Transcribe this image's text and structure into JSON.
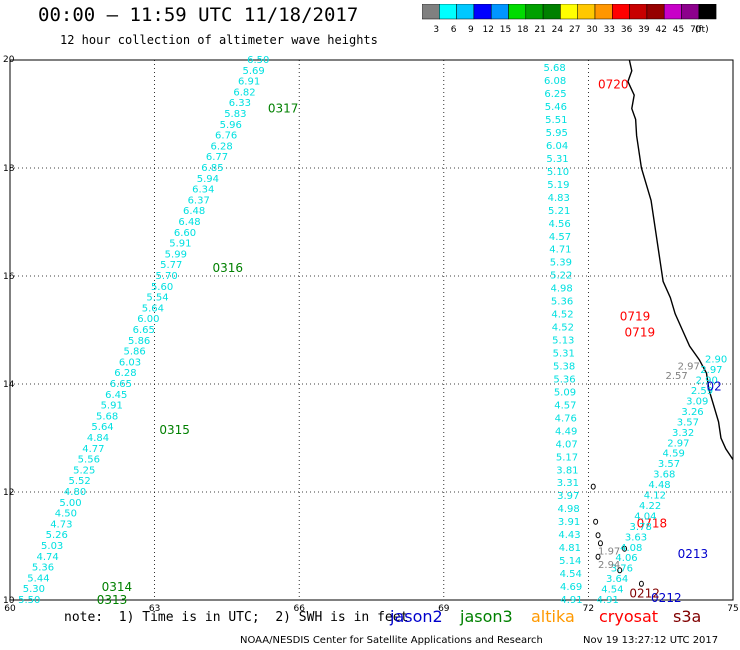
{
  "title": "00:00 – 11:59 UTC 11/18/2017",
  "subtitle": "12 hour collection of altimeter wave heights",
  "legend": {
    "colors": [
      "#808080",
      "#00ffff",
      "#00c8ff",
      "#0000ff",
      "#0096ff",
      "#00dc00",
      "#00a000",
      "#008000",
      "#ffff00",
      "#ffc800",
      "#ff9600",
      "#ff0000",
      "#c80000",
      "#960000",
      "#c800c8",
      "#8c008c",
      "#000000"
    ],
    "labels": [
      "3",
      "6",
      "9",
      "12",
      "15",
      "18",
      "21",
      "24",
      "27",
      "30",
      "33",
      "36",
      "39",
      "42",
      "45",
      "70",
      "(ft)"
    ]
  },
  "map": {
    "lon_ticks": [
      "60",
      "63",
      "66",
      "69",
      "72",
      "75"
    ],
    "lat_ticks": [
      "20",
      "18",
      "16",
      "14",
      "12",
      "10"
    ],
    "lon_range": [
      60,
      75
    ],
    "lat_range": [
      10,
      20
    ],
    "colors": {
      "jason2": "#0000cc",
      "jason3": "#008000",
      "altika": "#ff9900",
      "cryosat": "#ff0000",
      "s3a": "#800000",
      "swh_light": "#00e0e0",
      "swh_gray": "#808080"
    },
    "tracks": [
      {
        "satellite": "jason3",
        "lon_start": 60.4,
        "lat_start": 10.0,
        "lon_end": 65.15,
        "lat_end": 20.0,
        "values": [
          "5.50",
          "5.30",
          "5.44",
          "5.36",
          "4.74",
          "5.03",
          "5.26",
          "4.73",
          "4.50",
          "5.00",
          "4.80",
          "5.52",
          "5.25",
          "5.56",
          "4.77",
          "4.84",
          "5.64",
          "5.68",
          "5.91",
          "6.45",
          "6.65",
          "6.28",
          "6.03",
          "5.86",
          "5.86",
          "6.65",
          "6.00",
          "5.64",
          "5.54",
          "5.60",
          "5.70",
          "5.77",
          "5.99",
          "5.91",
          "6.60",
          "6.48",
          "6.48",
          "6.37",
          "6.34",
          "5.94",
          "6.85",
          "6.77",
          "6.28",
          "6.76",
          "5.96",
          "5.83",
          "6.33",
          "6.82",
          "6.91",
          "5.69",
          "6.50"
        ],
        "time_labels": [
          {
            "text": "0313",
            "lon": 61.8,
            "lat": 10.0
          },
          {
            "text": "0314",
            "lon": 61.9,
            "lat": 10.24
          },
          {
            "text": "0315",
            "lon": 63.1,
            "lat": 13.15
          },
          {
            "text": "0316",
            "lon": 64.2,
            "lat": 16.15
          },
          {
            "text": "0317",
            "lon": 65.35,
            "lat": 19.1
          }
        ]
      },
      {
        "satellite": "cryosat",
        "lon_start": 71.65,
        "lat_start": 10.0,
        "lon_end": 71.3,
        "lat_end": 19.85,
        "values": [
          "4.91",
          "4.69",
          "4.54",
          "5.14",
          "4.81",
          "4.43",
          "3.91",
          "4.98",
          "3.97",
          "3.31",
          "3.81",
          "5.17",
          "4.07",
          "4.49",
          "4.76",
          "4.57",
          "5.09",
          "5.36",
          "5.38",
          "5.31",
          "5.13",
          "4.52",
          "4.52",
          "5.36",
          "4.98",
          "5.22",
          "5.39",
          "4.71",
          "4.57",
          "4.56",
          "5.21",
          "4.83",
          "5.19",
          "5.10",
          "5.31",
          "6.04",
          "5.95",
          "5.51",
          "5.46",
          "6.25",
          "6.08",
          "5.68"
        ],
        "time_labels": [
          {
            "text": "0718",
            "lon": 73.0,
            "lat": 11.42
          },
          {
            "text": "0719",
            "lon": 72.75,
            "lat": 14.95
          },
          {
            "text": "0719",
            "lon": 72.65,
            "lat": 15.25
          },
          {
            "text": "0720",
            "lon": 72.2,
            "lat": 19.55
          }
        ]
      },
      {
        "satellite": "jason2",
        "lon_start": 72.4,
        "lat_start": 10.0,
        "lon_end": 74.65,
        "lat_end": 14.45,
        "values": [
          "4.91",
          "4.54",
          "3.64",
          "3.76",
          "4.06",
          "4.08",
          "3.63",
          "3.78",
          "4.04",
          "4.22",
          "4.12",
          "4.48",
          "3.68",
          "3.57",
          "4.59",
          "2.97",
          "3.32",
          "3.57",
          "3.26",
          "3.09",
          "2.59",
          "2.90",
          "2.97",
          "2.90"
        ],
        "time_labels": [
          {
            "text": "0212",
            "lon": 73.3,
            "lat": 10.04
          },
          {
            "text": "0213",
            "lon": 73.85,
            "lat": 10.85
          },
          {
            "text": "02",
            "lon": 74.45,
            "lat": 13.95
          }
        ]
      },
      {
        "satellite": "s3a",
        "time_labels": [
          {
            "text": "0212",
            "lon": 72.85,
            "lat": 10.12
          }
        ]
      }
    ],
    "extra_values": [
      {
        "text": "1.97",
        "lon": 72.2,
        "lat": 10.9,
        "tone": "gray"
      },
      {
        "text": "2.94",
        "lon": 72.2,
        "lat": 10.65,
        "tone": "gray"
      },
      {
        "text": "2.97",
        "lon": 73.85,
        "lat": 14.32,
        "tone": "gray"
      },
      {
        "text": "2.57",
        "lon": 73.6,
        "lat": 14.15,
        "tone": "gray"
      }
    ]
  },
  "footer": {
    "note": "note:  1) Time is in UTC;  2) SWH is in feet",
    "satellites": [
      {
        "name": "jason2",
        "color": "#0000cc"
      },
      {
        "name": "jason3",
        "color": "#008000"
      },
      {
        "name": "altika",
        "color": "#ff9900"
      },
      {
        "name": "cryosat",
        "color": "#ff0000"
      },
      {
        "name": "s3a",
        "color": "#800000"
      }
    ],
    "credit": "NOAA/NESDIS Center for Satellite Applications and Research",
    "timestamp": "Nov 19 13:27:12 UTC 2017"
  }
}
